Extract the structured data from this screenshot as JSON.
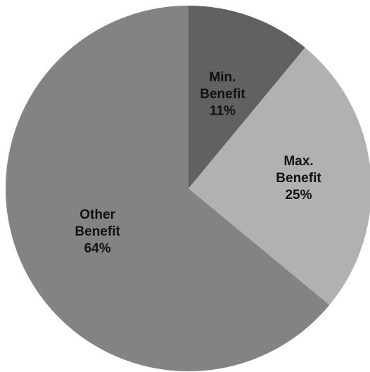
{
  "chart_data": {
    "type": "pie",
    "title": "",
    "legend": "none",
    "slices": [
      {
        "label": [
          "Min.",
          "Benefit"
        ],
        "value": 11,
        "display": "11%",
        "color": "#616161"
      },
      {
        "label": [
          "Max.",
          "Benefit"
        ],
        "value": 25,
        "display": "25%",
        "color": "#b1b1b1"
      },
      {
        "label": [
          "Other",
          "Benefit"
        ],
        "value": 64,
        "display": "64%",
        "color": "#838383"
      }
    ],
    "start": "12 o'clock",
    "direction": "clockwise"
  }
}
